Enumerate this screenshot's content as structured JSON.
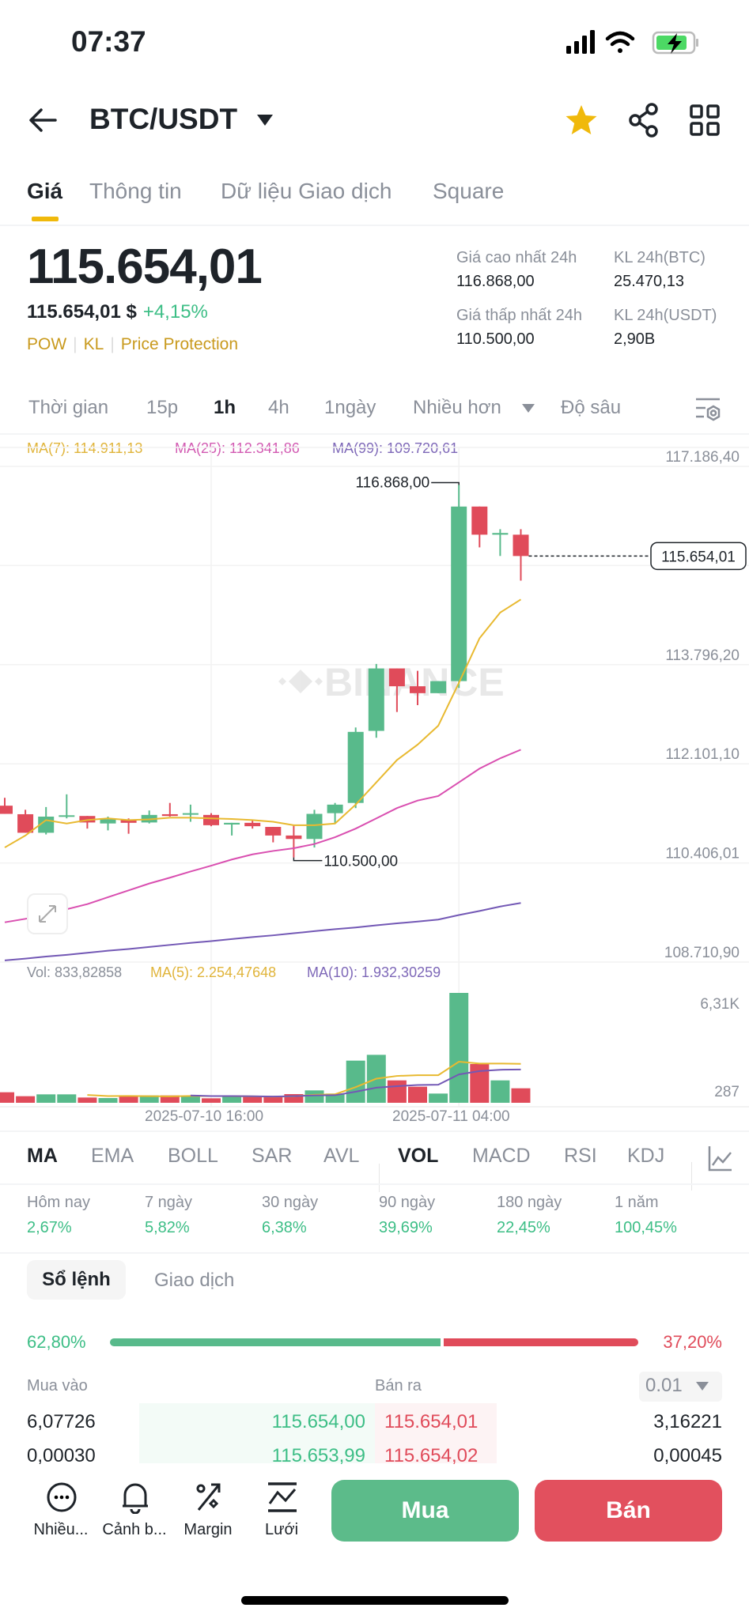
{
  "status_bar": {
    "time": "07:37",
    "icons": [
      "signal-icon",
      "wifi-icon",
      "battery-charging-icon"
    ]
  },
  "header": {
    "title": "BTC/USDT",
    "icons": [
      "back-arrow-icon",
      "caret-down-icon",
      "star-icon",
      "share-icon",
      "grid-icon"
    ],
    "star_color": "#F0B90B"
  },
  "tabs": [
    {
      "label": "Giá",
      "active": true
    },
    {
      "label": "Thông tin"
    },
    {
      "label": "Dữ liệu Giao dịch"
    },
    {
      "label": "Square"
    }
  ],
  "price": {
    "last": "115.654,01",
    "usd": "115.654,01 $",
    "change": "+4,15%",
    "tags": [
      "POW",
      "KL",
      "Price Protection"
    ]
  },
  "stats": {
    "high_label": "Giá cao nhất 24h",
    "high": "116.868,00",
    "vol_btc_label": "KL 24h(BTC)",
    "vol_btc": "25.470,13",
    "low_label": "Giá thấp nhất 24h",
    "low": "110.500,00",
    "vol_usdt_label": "KL 24h(USDT)",
    "vol_usdt": "2,90B"
  },
  "timeframes": [
    {
      "label": "Thời gian"
    },
    {
      "label": "15p"
    },
    {
      "label": "1h",
      "active": true
    },
    {
      "label": "4h"
    },
    {
      "label": "1ngày"
    },
    {
      "label": "Nhiều hơn"
    },
    {
      "label": "Độ sâu"
    }
  ],
  "chart_data": {
    "type": "candlestick",
    "interval": "1h",
    "legend": {
      "ma7": "MA(7): 114.911,13",
      "ma25": "MA(25): 112.341,86",
      "ma99": "MA(99): 109.720,61"
    },
    "colors": {
      "up": "#58BA8B",
      "down": "#E04B5A",
      "ma7": "#E8B930",
      "ma25": "#D94FB0",
      "ma99": "#7358B5"
    },
    "y_ticks": [
      117186.4,
      115491.3,
      113796.2,
      112101.1,
      110406.01,
      108710.9
    ],
    "y_tick_labels": [
      "117.186,40",
      "",
      "113.796,20",
      "112.101,10",
      "110.406,01",
      "108.710,90"
    ],
    "ylim": [
      108710.9,
      117186.4
    ],
    "high_marker": {
      "index": 22,
      "value": 116868,
      "label": "116.868,00"
    },
    "low_marker": {
      "index": 14,
      "value": 110500,
      "label": "110.500,00"
    },
    "last_price": {
      "value": 115654.01,
      "label": "115.654,01"
    },
    "watermark": "BINANCE",
    "candles": [
      {
        "o": 111385,
        "h": 111520,
        "l": 111245,
        "c": 111245
      },
      {
        "o": 111239,
        "h": 111315,
        "l": 110922,
        "c": 110922
      },
      {
        "o": 110922,
        "h": 111362,
        "l": 110893,
        "c": 111198
      },
      {
        "o": 111204,
        "h": 111579,
        "l": 111168,
        "c": 111221
      },
      {
        "o": 111209,
        "h": 111209,
        "l": 110993,
        "c": 111098
      },
      {
        "o": 111081,
        "h": 111198,
        "l": 110963,
        "c": 111151
      },
      {
        "o": 111139,
        "h": 111168,
        "l": 110905,
        "c": 111092
      },
      {
        "o": 111098,
        "h": 111303,
        "l": 111081,
        "c": 111227
      },
      {
        "o": 111239,
        "h": 111432,
        "l": 111198,
        "c": 111209
      },
      {
        "o": 111239,
        "h": 111403,
        "l": 111110,
        "c": 111257
      },
      {
        "o": 111227,
        "h": 111257,
        "l": 111034,
        "c": 111051
      },
      {
        "o": 111063,
        "h": 111092,
        "l": 110875,
        "c": 111092
      },
      {
        "o": 111092,
        "h": 111139,
        "l": 110993,
        "c": 111034
      },
      {
        "o": 111022,
        "h": 111022,
        "l": 110758,
        "c": 110875
      },
      {
        "o": 110875,
        "h": 111051,
        "l": 110500,
        "c": 110816
      },
      {
        "o": 110816,
        "h": 111315,
        "l": 110670,
        "c": 111245
      },
      {
        "o": 111257,
        "h": 111432,
        "l": 111080,
        "c": 111403
      },
      {
        "o": 111432,
        "h": 112723,
        "l": 111344,
        "c": 112647
      },
      {
        "o": 112664,
        "h": 113808,
        "l": 112547,
        "c": 113732
      },
      {
        "o": 113732,
        "h": 113732,
        "l": 112987,
        "c": 113427
      },
      {
        "o": 113427,
        "h": 113691,
        "l": 113104,
        "c": 113309
      },
      {
        "o": 113309,
        "h": 113515,
        "l": 113309,
        "c": 113515
      },
      {
        "o": 113515,
        "h": 116868,
        "l": 113397,
        "c": 116500
      },
      {
        "o": 116500,
        "h": 116500,
        "l": 115802,
        "c": 116019
      },
      {
        "o": 116019,
        "h": 116113,
        "l": 115655,
        "c": 116048
      },
      {
        "o": 116019,
        "h": 116113,
        "l": 115233,
        "c": 115654.01
      }
    ],
    "ma7": [
      110670,
      110875,
      111139,
      111080,
      111139,
      111168,
      111139,
      111151,
      111180,
      111180,
      111168,
      111157,
      111139,
      111110,
      111051,
      111051,
      111080,
      111403,
      111784,
      112166,
      112429,
      112752,
      113485,
      114248,
      114687,
      114911
    ],
    "ma25": [
      109391,
      109450,
      109526,
      109614,
      109702,
      109820,
      109937,
      110054,
      110154,
      110259,
      110359,
      110465,
      110553,
      110611,
      110658,
      110729,
      110846,
      110993,
      111168,
      111344,
      111473,
      111550,
      111784,
      112019,
      112195,
      112342
    ],
    "ma99": [
      108740,
      108770,
      108805,
      108834,
      108869,
      108905,
      108934,
      108969,
      109004,
      109039,
      109069,
      109104,
      109139,
      109168,
      109204,
      109239,
      109274,
      109303,
      109339,
      109374,
      109403,
      109438,
      109515,
      109585,
      109661,
      109721
    ],
    "volume": {
      "legend": {
        "vol": "Vol: 833,82858",
        "ma5": "MA(5): 2.254,47648",
        "ma10": "MA(10): 1.932,30259"
      },
      "values": [
        606,
        379,
        485,
        485,
        303,
        273,
        424,
        424,
        424,
        409,
        258,
        379,
        379,
        334,
        500,
        713,
        531,
        2426,
        2759,
        1289,
        925,
        531,
        6322,
        2229,
        1289,
        834
      ],
      "y_tick_labels": [
        "6,31K",
        "287"
      ],
      "ma5_color": "#E8B930",
      "ma10_color": "#7358B5"
    },
    "x_ticks": [
      {
        "index": 10,
        "label": "2025-07-10 16:00"
      },
      {
        "index": 22,
        "label": "2025-07-11 04:00"
      }
    ]
  },
  "indicators": [
    {
      "label": "MA",
      "active": true
    },
    {
      "label": "EMA"
    },
    {
      "label": "BOLL"
    },
    {
      "label": "SAR"
    },
    {
      "label": "AVL"
    },
    {
      "label": "VOL",
      "active": true
    },
    {
      "label": "MACD"
    },
    {
      "label": "RSI"
    },
    {
      "label": "KDJ"
    }
  ],
  "performance": [
    {
      "label": "Hôm nay",
      "value": "2,67%"
    },
    {
      "label": "7 ngày",
      "value": "5,82%"
    },
    {
      "label": "30 ngày",
      "value": "6,38%"
    },
    {
      "label": "90 ngày",
      "value": "39,69%"
    },
    {
      "label": "180 ngày",
      "value": "22,45%"
    },
    {
      "label": "1 năm",
      "value": "100,45%"
    }
  ],
  "orderbook": {
    "tabs": [
      {
        "label": "Sổ lệnh",
        "active": true
      },
      {
        "label": "Giao dịch"
      }
    ],
    "buy_ratio": "62,80%",
    "sell_ratio": "37,20%",
    "buy_fraction": 0.628,
    "buy_header": "Mua vào",
    "sell_header": "Bán ra",
    "precision": "0.01",
    "rows": [
      {
        "bid_qty": "6,07726",
        "bid": "115.654,00",
        "ask": "115.654,01",
        "ask_qty": "3,16221"
      },
      {
        "bid_qty": "0,00030",
        "bid": "115.653,99",
        "ask": "115.654,02",
        "ask_qty": "0,00045"
      }
    ]
  },
  "bottom_bar": {
    "items": [
      {
        "label": "Nhiều...",
        "icon": "more-icon"
      },
      {
        "label": "Cảnh b...",
        "icon": "bell-icon"
      },
      {
        "label": "Margin",
        "icon": "margin-icon"
      },
      {
        "label": "Lưới",
        "icon": "grid-trading-icon"
      }
    ],
    "buy": "Mua",
    "sell": "Bán",
    "buy_color": "#5CBB8A",
    "sell_color": "#E2505E"
  }
}
